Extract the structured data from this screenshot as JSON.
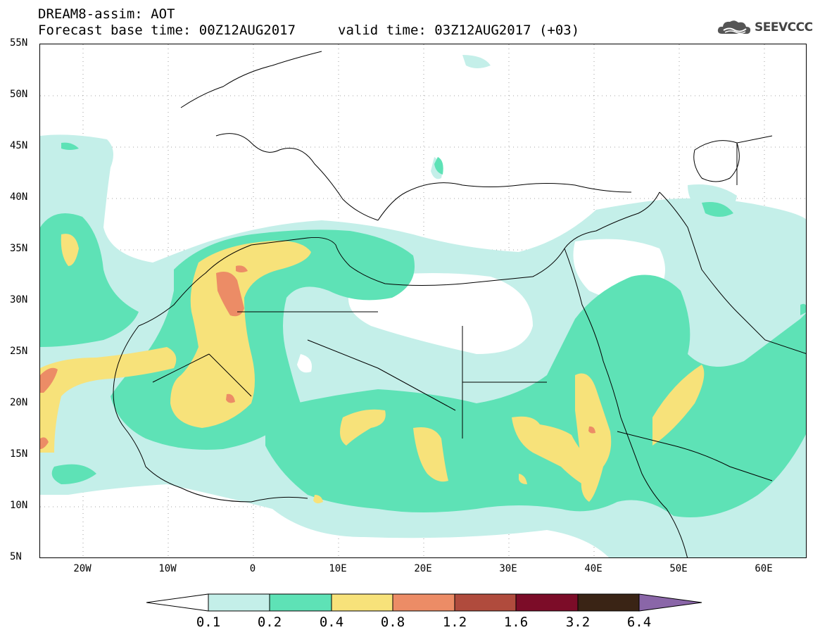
{
  "header": {
    "title_line1": "DREAM8-assim: AOT",
    "title_line2a": "Forecast base time: 00Z12AUG2017",
    "title_line2b": "valid time: 03Z12AUG2017 (+03)",
    "logo_text": "SEEVCCC",
    "logo_icon": "cloud-icon"
  },
  "map": {
    "lat_labels": [
      "55N",
      "50N",
      "45N",
      "40N",
      "35N",
      "30N",
      "25N",
      "20N",
      "15N",
      "10N",
      "5N"
    ],
    "lon_labels": [
      "20W",
      "10W",
      "0",
      "10E",
      "20E",
      "30E",
      "40E",
      "50E",
      "60E"
    ],
    "lat_range": [
      5,
      55
    ],
    "lon_range": [
      -25,
      65
    ]
  },
  "colorbar": {
    "levels": [
      "0.1",
      "0.2",
      "0.4",
      "0.8",
      "1.2",
      "1.6",
      "3.2",
      "6.4"
    ],
    "colors": [
      "#ffffff",
      "#c4efe9",
      "#5ee2b6",
      "#f7e27a",
      "#ec8c66",
      "#b04b3d",
      "#7c0c28",
      "#3a2415",
      "#8a66a8"
    ]
  }
}
